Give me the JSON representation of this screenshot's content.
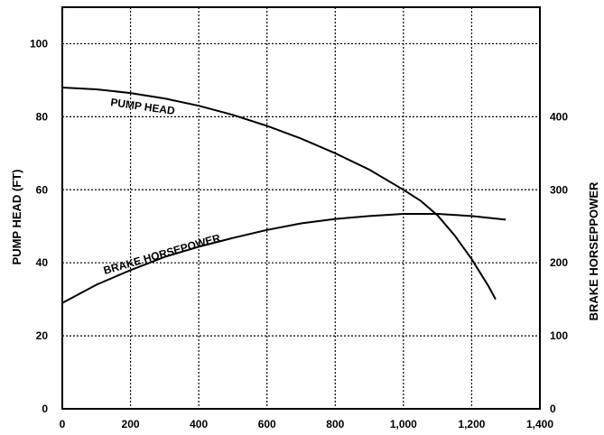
{
  "chart_data": {
    "type": "line",
    "xlabel": "",
    "ylabel": "PUMP HEAD (FT)",
    "y2label": "BRAKE HORSEPPOWER",
    "xlim": [
      0,
      1400
    ],
    "ylim": [
      0,
      110
    ],
    "y2lim": [
      0,
      550
    ],
    "grid": true,
    "x_ticks": [
      {
        "value": 0,
        "label": "0"
      },
      {
        "value": 200,
        "label": "200"
      },
      {
        "value": 400,
        "label": "400"
      },
      {
        "value": 600,
        "label": "600"
      },
      {
        "value": 800,
        "label": "800"
      },
      {
        "value": 1000,
        "label": "1,000"
      },
      {
        "value": 1200,
        "label": "1,200"
      },
      {
        "value": 1400,
        "label": "1,400"
      }
    ],
    "y_ticks": [
      {
        "value": 0,
        "label": "0"
      },
      {
        "value": 20,
        "label": "20"
      },
      {
        "value": 40,
        "label": "40"
      },
      {
        "value": 60,
        "label": "60"
      },
      {
        "value": 80,
        "label": "80"
      },
      {
        "value": 100,
        "label": "100"
      }
    ],
    "y2_ticks": [
      {
        "value": 0,
        "label": "0"
      },
      {
        "value": 100,
        "label": "100"
      },
      {
        "value": 200,
        "label": "200"
      },
      {
        "value": 300,
        "label": "300"
      },
      {
        "value": 400,
        "label": "400"
      }
    ],
    "series": [
      {
        "name": "PUMP HEAD",
        "axis": "left",
        "points": [
          [
            0,
            88
          ],
          [
            100,
            87.5
          ],
          [
            200,
            86.5
          ],
          [
            300,
            85
          ],
          [
            400,
            83
          ],
          [
            500,
            80.5
          ],
          [
            600,
            77.5
          ],
          [
            700,
            74
          ],
          [
            800,
            70
          ],
          [
            900,
            65.5
          ],
          [
            1000,
            60
          ],
          [
            1050,
            57
          ],
          [
            1100,
            53
          ],
          [
            1150,
            47.5
          ],
          [
            1200,
            41
          ],
          [
            1250,
            33.5
          ],
          [
            1270,
            30
          ]
        ]
      },
      {
        "name": "BRAKE HORSEPOWER",
        "axis": "right",
        "points": [
          [
            0,
            145
          ],
          [
            100,
            170
          ],
          [
            200,
            190
          ],
          [
            300,
            208
          ],
          [
            400,
            222
          ],
          [
            500,
            234
          ],
          [
            600,
            245
          ],
          [
            700,
            254
          ],
          [
            800,
            260
          ],
          [
            900,
            264
          ],
          [
            1000,
            267
          ],
          [
            1100,
            267
          ],
          [
            1200,
            264
          ],
          [
            1300,
            259
          ]
        ]
      }
    ]
  }
}
